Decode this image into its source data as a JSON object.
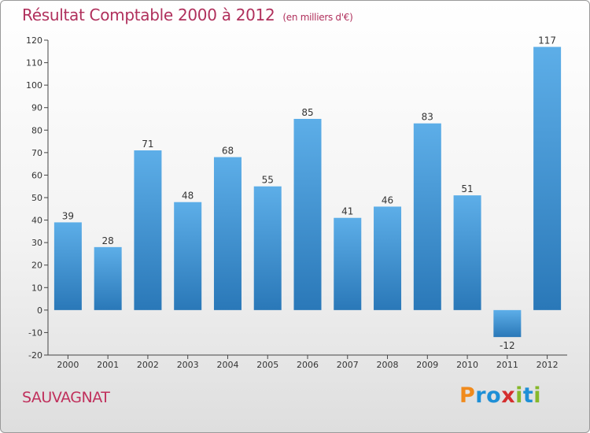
{
  "chart_data": {
    "type": "bar",
    "title": "Résultat Comptable 2000 à 2012",
    "subtitle": "(en milliers d'€)",
    "categories": [
      "2000",
      "2001",
      "2002",
      "2003",
      "2004",
      "2005",
      "2006",
      "2007",
      "2008",
      "2009",
      "2010",
      "2011",
      "2012"
    ],
    "values": [
      39,
      28,
      71,
      48,
      68,
      55,
      85,
      41,
      46,
      83,
      51,
      -12,
      117
    ],
    "data_labels": [
      "39",
      "28",
      "71",
      "48",
      "68",
      "55",
      "85",
      "41",
      "46",
      "83",
      "51",
      "-12",
      "117"
    ],
    "yticks": [
      -20,
      -10,
      0,
      10,
      20,
      30,
      40,
      50,
      60,
      70,
      80,
      90,
      100,
      110,
      120
    ],
    "ylim": [
      -20,
      120
    ],
    "grid": false,
    "bar_color_top": "#5daee8",
    "bar_color_bottom": "#2a78b8"
  },
  "footer": {
    "town": "SAUVAGNAT",
    "logo_letters": [
      "P",
      "r",
      "o",
      "x",
      "i",
      "t",
      "i"
    ],
    "logo_colors": [
      "#f08a1c",
      "#1e8fd6",
      "#1e8fd6",
      "#d42e2e",
      "#86b82a",
      "#1e8fd6",
      "#86b82a"
    ]
  }
}
